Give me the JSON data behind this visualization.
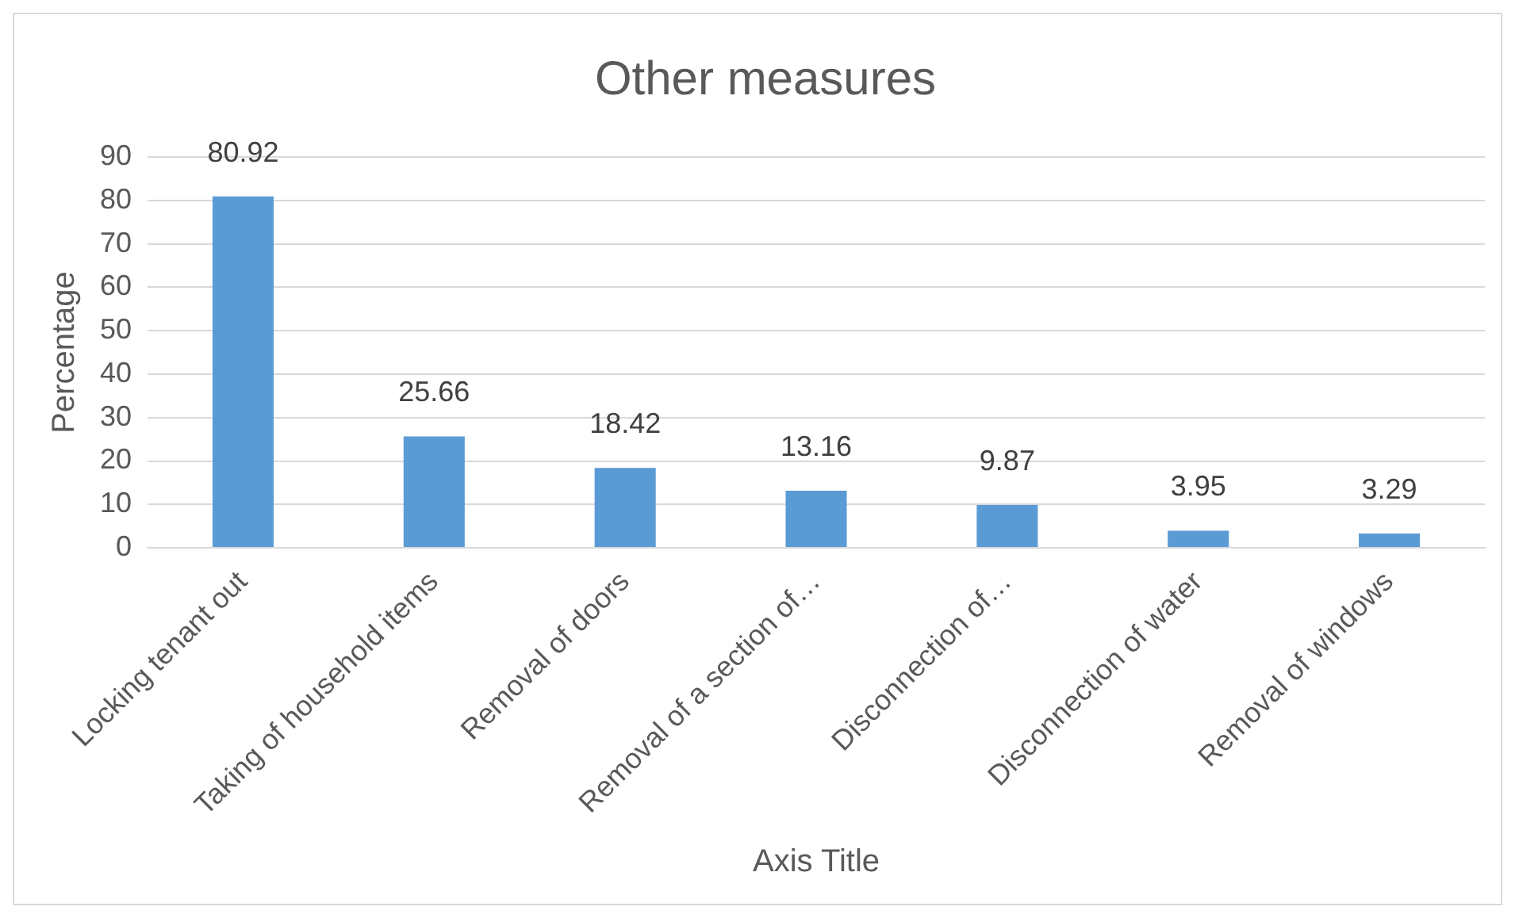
{
  "chart_data": {
    "type": "bar",
    "title": "Other measures",
    "xlabel": "Axis Title",
    "ylabel": "Percentage",
    "categories": [
      "Locking tenant out",
      "Taking of household items",
      "Removal of doors",
      "Removal of a section of…",
      "Disconnection of…",
      "Disconnection of water",
      "Removal of windows"
    ],
    "values": [
      80.92,
      25.66,
      18.42,
      13.16,
      9.87,
      3.95,
      3.29
    ],
    "color": "#5b9bd5",
    "ylim": [
      0,
      90
    ],
    "yticks": [
      0,
      10,
      20,
      30,
      40,
      50,
      60,
      70,
      80,
      90
    ],
    "grid": "y",
    "data_labels": true,
    "legend": false
  }
}
